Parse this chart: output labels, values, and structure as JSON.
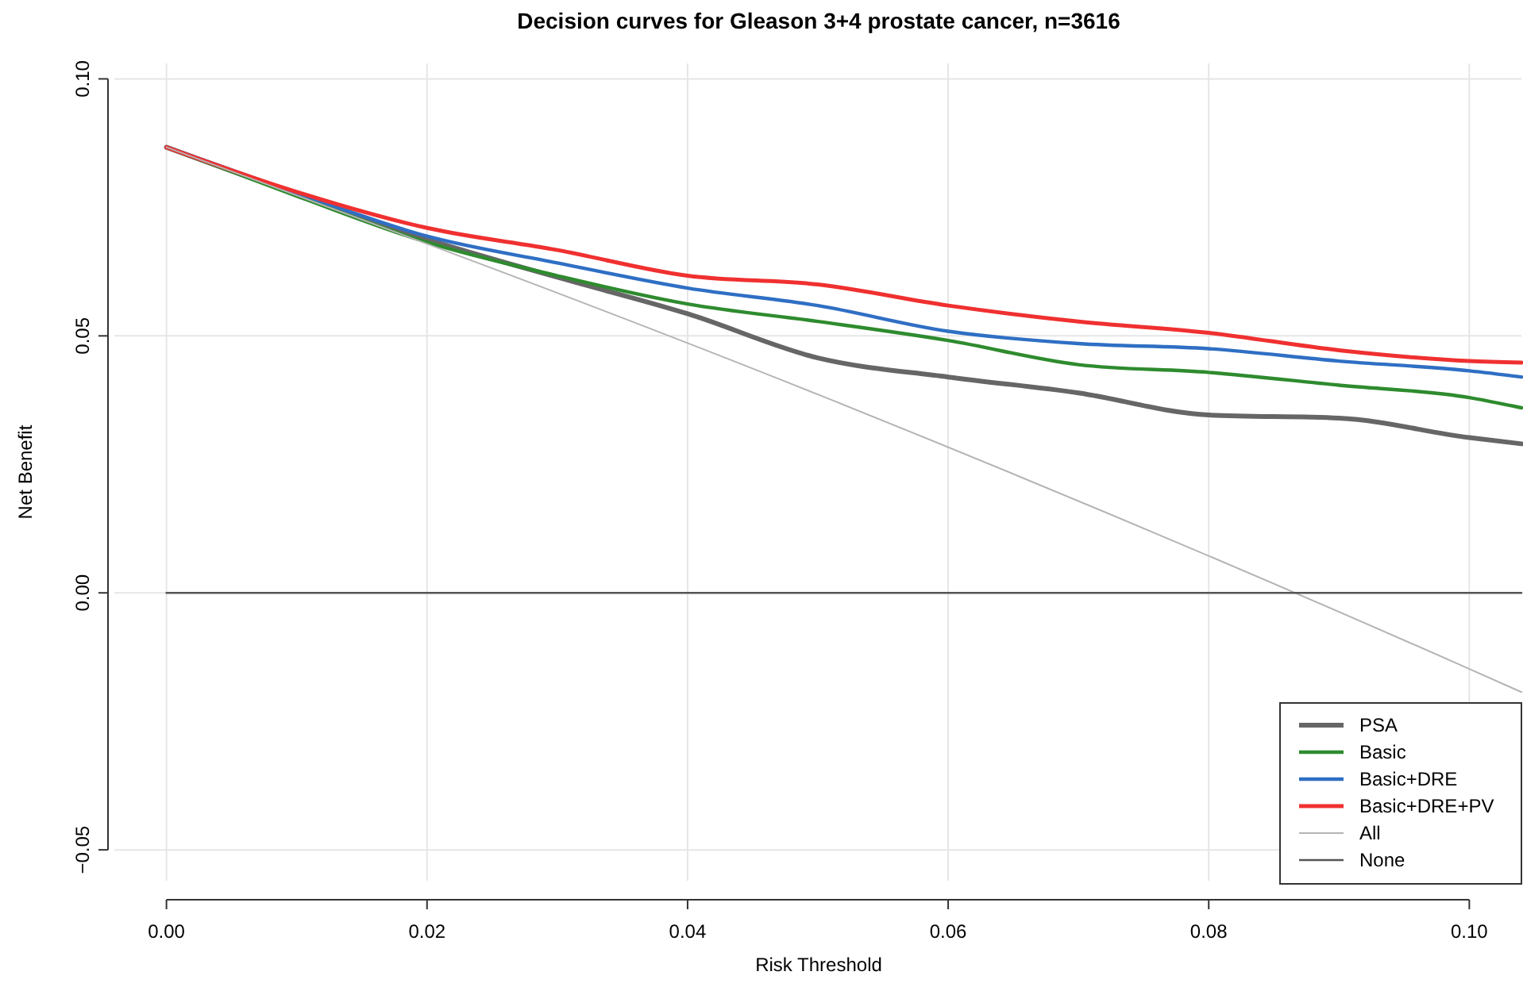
{
  "chart_data": {
    "type": "line",
    "title": "Decision curves for Gleason 3+4 prostate cancer, n=3616",
    "xlabel": "Risk Threshold",
    "ylabel": "Net Benefit",
    "x": [
      0,
      0.01,
      0.02,
      0.03,
      0.04,
      0.05,
      0.06,
      0.07,
      0.08,
      0.09,
      0.1,
      0.104
    ],
    "series": [
      {
        "name": "PSA",
        "color": "#666666",
        "values": [
          0.0867,
          0.0775,
          0.0688,
          0.0614,
          0.0543,
          0.0457,
          0.042,
          0.0389,
          0.0346,
          0.034,
          0.0302,
          0.029
        ]
      },
      {
        "name": "Basic",
        "color": "#2e8b2e",
        "values": [
          0.0867,
          0.0772,
          0.0682,
          0.0617,
          0.0562,
          0.0528,
          0.0491,
          0.0444,
          0.0429,
          0.0404,
          0.038,
          0.036
        ]
      },
      {
        "name": "Basic+DRE",
        "color": "#2f6fc4",
        "values": [
          0.0867,
          0.0778,
          0.0694,
          0.0642,
          0.0593,
          0.0559,
          0.0509,
          0.0485,
          0.0475,
          0.0451,
          0.0432,
          0.042
        ]
      },
      {
        "name": "Basic+DRE+PV",
        "color": "#f03030",
        "values": [
          0.0867,
          0.078,
          0.071,
          0.0667,
          0.0617,
          0.06,
          0.0559,
          0.0528,
          0.0506,
          0.0472,
          0.0451,
          0.0448
        ]
      },
      {
        "name": "All",
        "color": "#b4b4b4",
        "x": [
          0,
          0.05,
          0.1,
          0.104
        ],
        "values": [
          0.0867,
          0.0386,
          -0.0148,
          -0.0193
        ]
      },
      {
        "name": "None",
        "color": "#555555",
        "x": [
          0,
          0.104
        ],
        "values": [
          0,
          0
        ]
      }
    ],
    "xlim": [
      -0.004,
      0.104
    ],
    "ylim": [
      -0.056,
      0.103
    ],
    "xticks": [
      {
        "value": 0,
        "label": "0.00"
      },
      {
        "value": 0.02,
        "label": "0.02"
      },
      {
        "value": 0.04,
        "label": "0.04"
      },
      {
        "value": 0.06,
        "label": "0.06"
      },
      {
        "value": 0.08,
        "label": "0.08"
      },
      {
        "value": 0.1,
        "label": "0.10"
      }
    ],
    "yticks": [
      {
        "value": -0.05,
        "label": "−0.05"
      },
      {
        "value": 0,
        "label": "0.00"
      },
      {
        "value": 0.05,
        "label": "0.05"
      },
      {
        "value": 0.1,
        "label": "0.10"
      }
    ],
    "grid": true,
    "legend": "bottom right",
    "line_style": "solid"
  }
}
